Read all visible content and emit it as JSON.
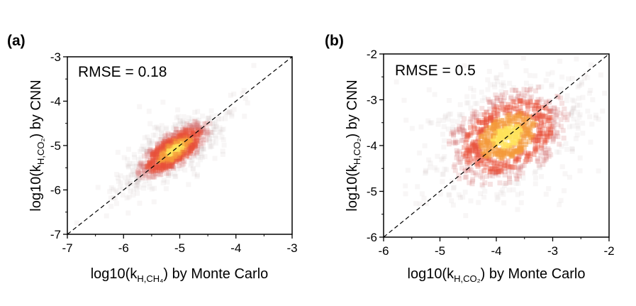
{
  "chart_data": [
    {
      "type": "scatter",
      "panel_label": "(a)",
      "annotation": "RMSE = 0.18",
      "xlabel": {
        "prefix": "log10(k",
        "sub": "H,CH₄",
        "suffix": ") by Monte Carlo"
      },
      "ylabel": {
        "prefix": "log10(k",
        "sub": "H,CO₂",
        "suffix": ") by CNN"
      },
      "xlim": [
        -7,
        -3
      ],
      "ylim": [
        -7,
        -3
      ],
      "xticks": [
        "-7",
        "-6",
        "-5",
        "-4",
        "-3"
      ],
      "yticks": [
        "-7",
        "-6",
        "-5",
        "-4",
        "-3"
      ],
      "xtick_values": [
        -7,
        -6,
        -5,
        -4,
        -3
      ],
      "ytick_values": [
        -7,
        -6,
        -5,
        -4,
        -3
      ],
      "reference_line": "y = x",
      "density": {
        "center": [
          -5.1,
          -5.1
        ],
        "spread_along": 0.45,
        "spread_across": 0.18
      }
    },
    {
      "type": "scatter",
      "panel_label": "(b)",
      "annotation": "RMSE = 0.5",
      "xlabel": {
        "prefix": "log10(k",
        "sub": "H,CO₂",
        "suffix": ") by Monte Carlo"
      },
      "ylabel": {
        "prefix": "log10(k",
        "sub": "H,CO₂",
        "suffix": ") by CNN"
      },
      "xlim": [
        -6,
        -2
      ],
      "ylim": [
        -6,
        -2
      ],
      "xticks": [
        "-6",
        "-5",
        "-4",
        "-3",
        "-2"
      ],
      "yticks": [
        "-6",
        "-5",
        "-4",
        "-3",
        "-2"
      ],
      "xtick_values": [
        -6,
        -5,
        -4,
        -3,
        -2
      ],
      "ytick_values": [
        -6,
        -5,
        -4,
        -3,
        -2
      ],
      "reference_line": "y = x",
      "density": {
        "center": [
          -3.8,
          -3.8
        ],
        "spread_along": 0.65,
        "spread_across": 0.45
      }
    }
  ]
}
